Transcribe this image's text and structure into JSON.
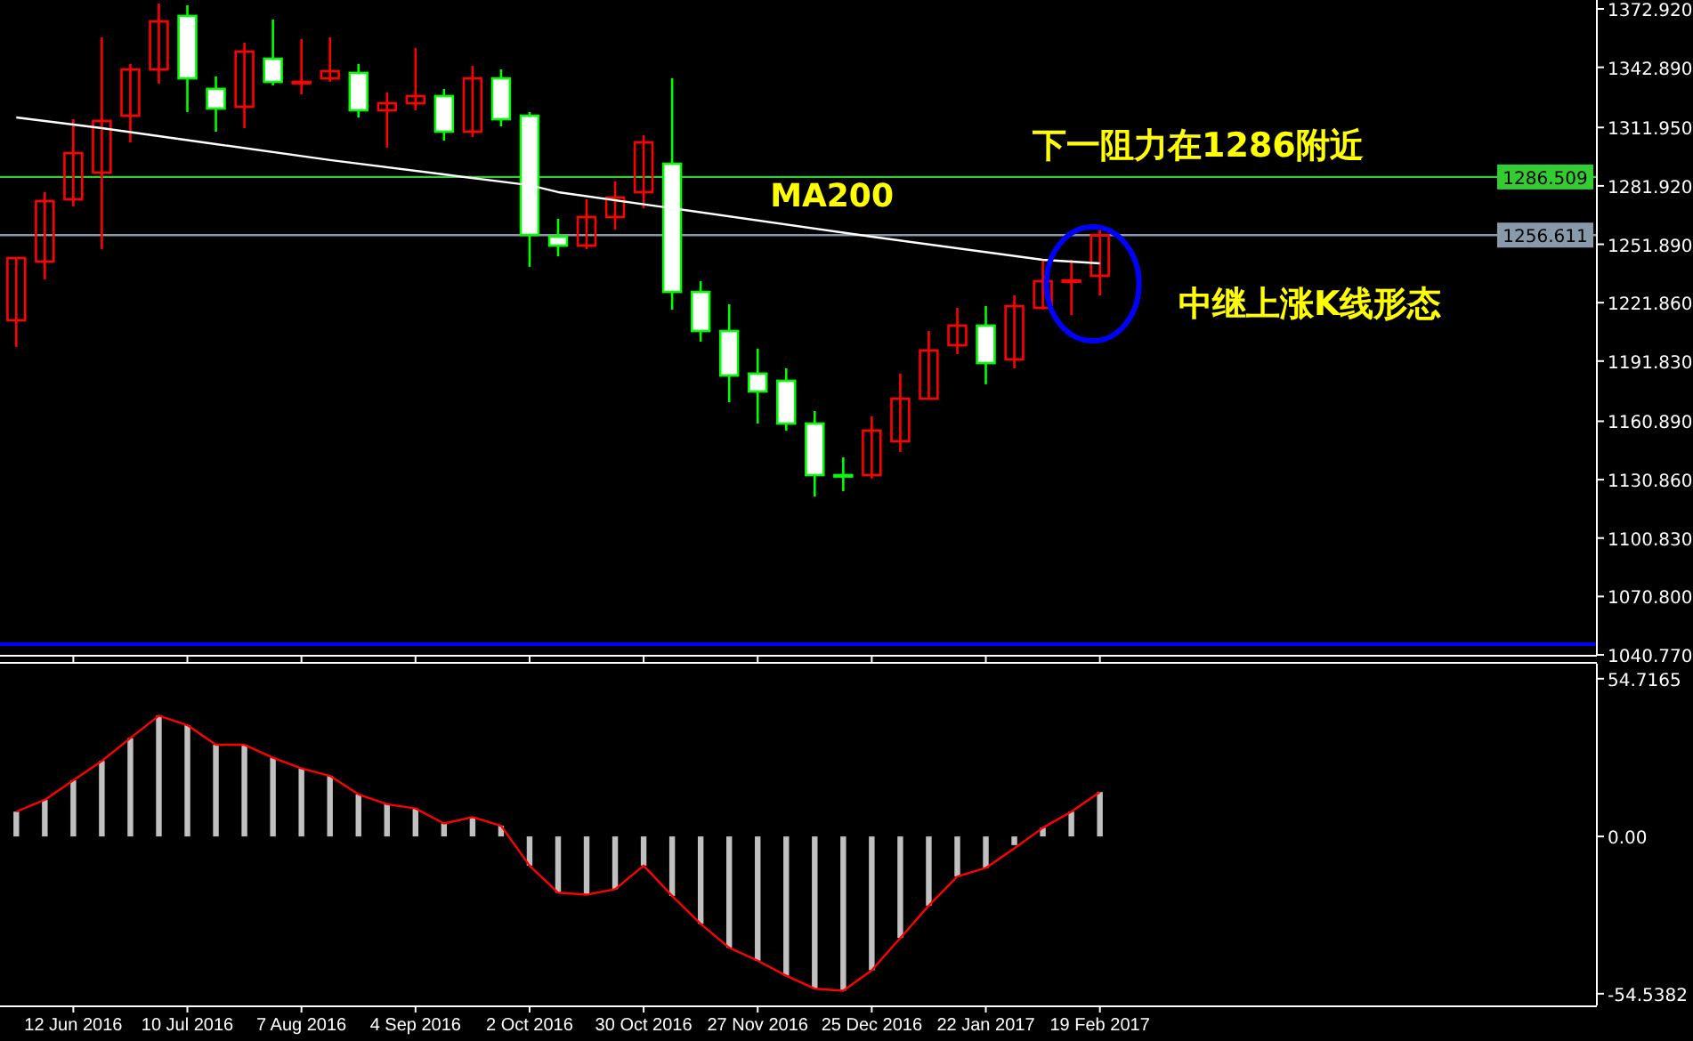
{
  "chart_data": [
    {
      "type": "candlestick",
      "x": [
        "2016-05-29",
        "2016-06-05",
        "2016-06-12",
        "2016-06-19",
        "2016-06-26",
        "2016-07-03",
        "2016-07-10",
        "2016-07-17",
        "2016-07-24",
        "2016-07-31",
        "2016-08-07",
        "2016-08-14",
        "2016-08-21",
        "2016-08-28",
        "2016-09-04",
        "2016-09-11",
        "2016-09-18",
        "2016-09-25",
        "2016-10-02",
        "2016-10-09",
        "2016-10-16",
        "2016-10-23",
        "2016-10-30",
        "2016-11-06",
        "2016-11-13",
        "2016-11-20",
        "2016-11-27",
        "2016-12-04",
        "2016-12-11",
        "2016-12-18",
        "2016-12-25",
        "2017-01-01",
        "2017-01-08",
        "2017-01-15",
        "2017-01-22",
        "2017-01-29",
        "2017-02-05",
        "2017-02-12",
        "2017-02-19"
      ],
      "ohlc": [
        [
          1212.8,
          1244.8,
          1199.1,
          1244.8
        ],
        [
          1243.0,
          1278.7,
          1233.8,
          1274.1
        ],
        [
          1275.0,
          1316.2,
          1271.4,
          1298.8
        ],
        [
          1288.7,
          1358.3,
          1249.4,
          1315.3
        ],
        [
          1318.0,
          1344.6,
          1304.3,
          1341.8
        ],
        [
          1341.8,
          1375.7,
          1334.5,
          1366.5
        ],
        [
          1369.3,
          1374.8,
          1319.9,
          1337.2
        ],
        [
          1331.8,
          1338.2,
          1309.8,
          1321.7
        ],
        [
          1322.6,
          1355.5,
          1311.6,
          1351.0
        ],
        [
          1347.3,
          1367.4,
          1333.6,
          1335.4
        ],
        [
          1335.0,
          1357.4,
          1329.0,
          1335.4
        ],
        [
          1337.2,
          1358.3,
          1335.4,
          1340.9
        ],
        [
          1340.0,
          1344.6,
          1317.1,
          1320.8
        ],
        [
          1320.8,
          1329.9,
          1301.6,
          1324.4
        ],
        [
          1324.4,
          1352.8,
          1320.8,
          1328.1
        ],
        [
          1328.1,
          1331.8,
          1305.2,
          1309.8
        ],
        [
          1309.8,
          1343.6,
          1307.0,
          1337.2
        ],
        [
          1337.2,
          1341.8,
          1312.5,
          1316.2
        ],
        [
          1318.0,
          1319.9,
          1240.3,
          1256.7
        ],
        [
          1255.8,
          1265.0,
          1245.7,
          1251.2
        ],
        [
          1251.2,
          1275.0,
          1249.4,
          1265.9
        ],
        [
          1265.9,
          1284.2,
          1259.5,
          1275.9
        ],
        [
          1278.7,
          1308.0,
          1270.4,
          1304.3
        ],
        [
          1293.3,
          1337.2,
          1218.3,
          1227.4
        ],
        [
          1227.4,
          1232.9,
          1201.8,
          1207.3
        ],
        [
          1207.3,
          1221.0,
          1170.7,
          1184.4
        ],
        [
          1185.4,
          1198.2,
          1159.7,
          1176.2
        ],
        [
          1181.7,
          1188.1,
          1156.1,
          1159.7
        ],
        [
          1159.7,
          1166.1,
          1122.2,
          1133.2
        ],
        [
          1133.2,
          1142.3,
          1125.0,
          1133.0
        ],
        [
          1133.2,
          1163.4,
          1131.4,
          1156.1
        ],
        [
          1150.6,
          1185.4,
          1145.1,
          1172.5
        ],
        [
          1172.5,
          1207.3,
          1172.5,
          1197.3
        ],
        [
          1200.0,
          1219.2,
          1195.4,
          1210.1
        ],
        [
          1210.1,
          1220.1,
          1179.9,
          1190.8
        ],
        [
          1192.7,
          1225.6,
          1188.1,
          1220.1
        ],
        [
          1219.2,
          1243.9,
          1218.3,
          1232.9
        ],
        [
          1232.9,
          1243.9,
          1215.5,
          1233.3
        ],
        [
          1235.7,
          1260.4,
          1225.6,
          1256.6
        ]
      ],
      "colors": [
        "#ff0000",
        "#ff0000",
        "#ff0000",
        "#ff0000",
        "#ff0000",
        "#ff0000",
        "#00ff00",
        "#00ff00",
        "#ff0000",
        "#00ff00",
        "#ff0000",
        "#ff0000",
        "#00ff00",
        "#ff0000",
        "#ff0000",
        "#00ff00",
        "#ff0000",
        "#00ff00",
        "#00ff00",
        "#00ff00",
        "#ff0000",
        "#ff0000",
        "#ff0000",
        "#00ff00",
        "#00ff00",
        "#00ff00",
        "#00ff00",
        "#00ff00",
        "#00ff00",
        "#00ff00",
        "#ff0000",
        "#ff0000",
        "#ff0000",
        "#ff0000",
        "#00ff00",
        "#ff0000",
        "#ff0000",
        "#ff0000",
        "#ff0000"
      ],
      "series": [
        {
          "name": "MA200",
          "type": "line",
          "color": "#ffffff",
          "x": [
            "2016-05-29",
            "2016-06-19",
            "2016-07-17",
            "2016-08-14",
            "2016-09-11",
            "2016-10-02",
            "2016-10-09",
            "2016-11-06",
            "2016-12-25",
            "2017-02-05",
            "2017-02-19"
          ],
          "values": [
            1317.1,
            1311.6,
            1303.4,
            1295.2,
            1287.8,
            1282.3,
            1278.7,
            1270.4,
            1255.8,
            1243.9,
            1242.1
          ]
        }
      ],
      "ref_lines": [
        {
          "axis": "y",
          "value": 1286.509,
          "label": "1286.509",
          "color": "#33cc33"
        },
        {
          "axis": "y",
          "value": 1256.611,
          "label": "1256.611",
          "color": "#8899aa"
        },
        {
          "axis": "y",
          "value": 1046.3,
          "color": "#0000ff"
        }
      ],
      "annotations": [
        "下一阻力在1286附近",
        "中继上涨K线形态"
      ],
      "xlim": [
        "2016-05-25",
        "2017-06-21"
      ],
      "ylim": [
        1040.77,
        1377.5
      ],
      "yticks": [
        {
          "value": 1372.92,
          "label": "1372.920"
        },
        {
          "value": 1342.89,
          "label": "1342.890"
        },
        {
          "value": 1311.95,
          "label": "1311.950"
        },
        {
          "value": 1281.92,
          "label": "1281.920"
        },
        {
          "value": 1251.89,
          "label": "1251.890"
        },
        {
          "value": 1221.86,
          "label": "1221.860"
        },
        {
          "value": 1191.83,
          "label": "1191.830"
        },
        {
          "value": 1160.89,
          "label": "1160.890"
        },
        {
          "value": 1130.86,
          "label": "1130.860"
        },
        {
          "value": 1100.83,
          "label": "1100.830"
        },
        {
          "value": 1070.8,
          "label": "1070.800"
        },
        {
          "value": 1040.77,
          "label": "1040.770"
        }
      ],
      "xticks": [
        {
          "value": "2016-06-12",
          "label": null
        },
        {
          "value": "2016-07-10",
          "label": null
        },
        {
          "value": "2016-08-07",
          "label": null
        },
        {
          "value": "2016-09-04",
          "label": null
        },
        {
          "value": "2016-10-02",
          "label": null
        },
        {
          "value": "2016-10-30",
          "label": null
        },
        {
          "value": "2016-11-27",
          "label": null
        },
        {
          "value": "2016-12-25",
          "label": null
        },
        {
          "value": "2017-01-22",
          "label": null
        },
        {
          "value": "2017-02-19",
          "label": null
        }
      ],
      "tick_labels": "y"
    },
    {
      "type": "bar",
      "x": [
        "2016-05-29",
        "2016-06-05",
        "2016-06-12",
        "2016-06-19",
        "2016-06-26",
        "2016-07-03",
        "2016-07-10",
        "2016-07-17",
        "2016-07-24",
        "2016-07-31",
        "2016-08-07",
        "2016-08-14",
        "2016-08-21",
        "2016-08-28",
        "2016-09-04",
        "2016-09-11",
        "2016-09-18",
        "2016-09-25",
        "2016-10-02",
        "2016-10-09",
        "2016-10-16",
        "2016-10-23",
        "2016-10-30",
        "2016-11-06",
        "2016-11-13",
        "2016-11-20",
        "2016-11-27",
        "2016-12-04",
        "2016-12-11",
        "2016-12-18",
        "2016-12-25",
        "2017-01-01",
        "2017-01-08",
        "2017-01-15",
        "2017-01-22",
        "2017-01-29",
        "2017-02-05",
        "2017-02-12",
        "2017-02-19"
      ],
      "series": [
        {
          "type": "bar",
          "color": "#c0c0c0",
          "values": [
            8.6,
            12.7,
            19.5,
            26.2,
            34.1,
            41.9,
            38.6,
            31.8,
            31.8,
            27.3,
            23.6,
            21.0,
            14.6,
            11.2,
            9.7,
            4.5,
            6.7,
            3.7,
            -10.1,
            -19.5,
            -20.2,
            -18.3,
            -10.1,
            -20.6,
            -30.3,
            -38.6,
            -43.1,
            -48.3,
            -52.8,
            -53.5,
            -46.4,
            -35.2,
            -24.0,
            -13.9,
            -10.9,
            -3.0,
            3.0,
            8.6,
            15.4
          ]
        },
        {
          "type": "line",
          "color": "#ff0000",
          "values": [
            8.6,
            12.7,
            19.5,
            26.2,
            34.1,
            41.9,
            38.6,
            31.8,
            31.8,
            27.3,
            23.6,
            21.0,
            14.6,
            11.2,
            9.7,
            4.5,
            6.7,
            3.7,
            -10.1,
            -19.5,
            -20.2,
            -18.3,
            -10.1,
            -20.6,
            -30.3,
            -38.6,
            -43.1,
            -48.3,
            -52.8,
            -53.5,
            -46.4,
            -35.2,
            -24.0,
            -13.9,
            -10.9,
            -4.1,
            3.0,
            8.6,
            15.4
          ]
        }
      ],
      "xlim": [
        "2016-05-25",
        "2017-06-21"
      ],
      "ylim": [
        -58.6,
        59.9
      ],
      "xticks": [
        {
          "value": "2016-06-12",
          "label": "12 Jun 2016"
        },
        {
          "value": "2016-07-10",
          "label": "10 Jul 2016"
        },
        {
          "value": "2016-08-07",
          "label": "7 Aug 2016"
        },
        {
          "value": "2016-09-04",
          "label": "4 Sep 2016"
        },
        {
          "value": "2016-10-02",
          "label": "2 Oct 2016"
        },
        {
          "value": "2016-10-30",
          "label": "30 Oct 2016"
        },
        {
          "value": "2016-11-27",
          "label": "27 Nov 2016"
        },
        {
          "value": "2016-12-25",
          "label": "25 Dec 2016"
        },
        {
          "value": "2017-01-22",
          "label": "22 Jan 2017"
        },
        {
          "value": "2017-02-19",
          "label": "19 Feb 2017"
        }
      ],
      "yticks": [
        54.7165,
        {
          "value": 0,
          "label": "0.00"
        },
        -54.5382
      ]
    }
  ]
}
